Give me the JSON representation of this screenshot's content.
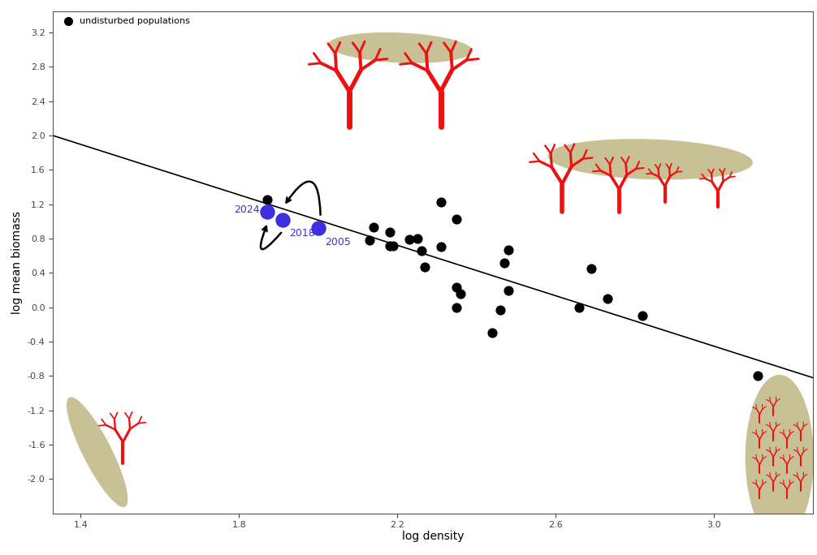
{
  "chart_data": {
    "type": "scatter",
    "x_label": "log density",
    "y_label": "log mean biomass",
    "xlim": [
      1.33,
      3.25
    ],
    "ylim": [
      -2.4,
      3.45
    ],
    "xticks": [
      1.4,
      1.8,
      2.2,
      2.6,
      3.0
    ],
    "yticks": [
      -2.0,
      -1.6,
      -1.2,
      -0.8,
      -0.4,
      0.0,
      0.4,
      0.8,
      1.2,
      1.6,
      2.0,
      2.4,
      2.8,
      3.2
    ],
    "legend": "upper left",
    "series": [
      {
        "name": "undisturbed populations",
        "color": "#000000",
        "marker": "o",
        "x": [
          1.87,
          2.14,
          2.13,
          2.18,
          2.18,
          2.19,
          2.23,
          2.25,
          2.26,
          2.27,
          2.31,
          2.31,
          2.35,
          2.35,
          2.36,
          2.35,
          2.44,
          2.46,
          2.47,
          2.48,
          2.48,
          2.69,
          2.66,
          2.73,
          2.82,
          3.11
        ],
        "values": [
          1.25,
          0.93,
          0.78,
          0.88,
          0.72,
          0.72,
          0.79,
          0.8,
          0.66,
          0.47,
          1.23,
          0.71,
          1.03,
          0.23,
          0.16,
          0.0,
          -0.3,
          -0.03,
          0.52,
          0.67,
          0.2,
          0.45,
          0.0,
          0.1,
          -0.1,
          -0.8
        ]
      },
      {
        "color": "#3d2ee0",
        "marker": "o",
        "x": [
          1.87,
          1.91,
          2.0
        ],
        "values": [
          1.11,
          1.02,
          0.92
        ],
        "point_labels": [
          "2024",
          "2018",
          "2005"
        ]
      }
    ],
    "fit_line": {
      "x": [
        1.33,
        3.25
      ],
      "values": [
        2.0,
        -0.82
      ],
      "color": "#000000"
    }
  }
}
